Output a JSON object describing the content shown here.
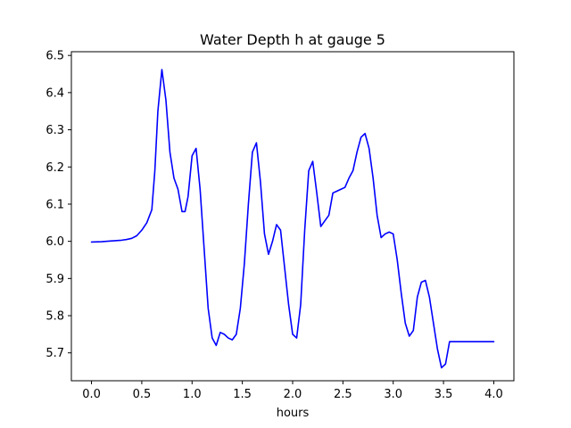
{
  "chart_data": {
    "type": "line",
    "title": "Water Depth h at gauge 5",
    "xlabel": "hours",
    "ylabel": "",
    "xlim": [
      -0.2,
      4.2
    ],
    "ylim": [
      5.625,
      6.51
    ],
    "xticks": [
      0.0,
      0.5,
      1.0,
      1.5,
      2.0,
      2.5,
      3.0,
      3.5,
      4.0
    ],
    "xtick_labels": [
      "0.0",
      "0.5",
      "1.0",
      "1.5",
      "2.0",
      "2.5",
      "3.0",
      "3.5",
      "4.0"
    ],
    "yticks": [
      5.7,
      5.8,
      5.9,
      6.0,
      6.1,
      6.2,
      6.3,
      6.4,
      6.5
    ],
    "ytick_labels": [
      "5.7",
      "5.8",
      "5.9",
      "6.0",
      "6.1",
      "6.2",
      "6.3",
      "6.4",
      "6.5"
    ],
    "grid": false,
    "series": [
      {
        "color": "#0000ff",
        "x": [
          0.0,
          0.1,
          0.2,
          0.3,
          0.35,
          0.4,
          0.45,
          0.5,
          0.55,
          0.6,
          0.63,
          0.66,
          0.7,
          0.74,
          0.78,
          0.82,
          0.86,
          0.9,
          0.93,
          0.96,
          1.0,
          1.04,
          1.08,
          1.12,
          1.16,
          1.2,
          1.24,
          1.28,
          1.32,
          1.36,
          1.4,
          1.44,
          1.48,
          1.52,
          1.56,
          1.6,
          1.64,
          1.68,
          1.72,
          1.76,
          1.8,
          1.84,
          1.88,
          1.92,
          1.96,
          2.0,
          2.04,
          2.08,
          2.12,
          2.16,
          2.2,
          2.24,
          2.28,
          2.32,
          2.36,
          2.4,
          2.44,
          2.48,
          2.52,
          2.56,
          2.6,
          2.64,
          2.68,
          2.72,
          2.76,
          2.8,
          2.84,
          2.88,
          2.92,
          2.96,
          3.0,
          3.04,
          3.08,
          3.12,
          3.16,
          3.2,
          3.24,
          3.28,
          3.32,
          3.36,
          3.4,
          3.44,
          3.48,
          3.52,
          3.56,
          3.6,
          3.64,
          3.68,
          3.72,
          3.76,
          3.8,
          3.84,
          3.88,
          3.92,
          3.96,
          4.0
        ],
        "y": [
          5.998,
          5.999,
          6.001,
          6.003,
          6.005,
          6.008,
          6.015,
          6.03,
          6.05,
          6.085,
          6.19,
          6.35,
          6.462,
          6.38,
          6.24,
          6.17,
          6.14,
          6.08,
          6.08,
          6.12,
          6.23,
          6.25,
          6.14,
          5.98,
          5.82,
          5.74,
          5.72,
          5.755,
          5.75,
          5.74,
          5.735,
          5.75,
          5.82,
          5.94,
          6.1,
          6.24,
          6.265,
          6.16,
          6.02,
          5.965,
          6.0,
          6.045,
          6.03,
          5.93,
          5.83,
          5.75,
          5.74,
          5.83,
          6.03,
          6.19,
          6.215,
          6.13,
          6.04,
          6.055,
          6.07,
          6.13,
          6.135,
          6.14,
          6.145,
          6.17,
          6.19,
          6.24,
          6.28,
          6.29,
          6.25,
          6.17,
          6.07,
          6.01,
          6.02,
          6.025,
          6.02,
          5.95,
          5.86,
          5.78,
          5.745,
          5.76,
          5.85,
          5.89,
          5.895,
          5.85,
          5.78,
          5.71,
          5.66,
          5.67,
          5.73,
          5.73,
          5.73,
          5.73,
          5.73,
          5.73,
          5.73,
          5.73,
          5.73,
          5.73,
          5.73,
          5.73
        ]
      }
    ]
  }
}
